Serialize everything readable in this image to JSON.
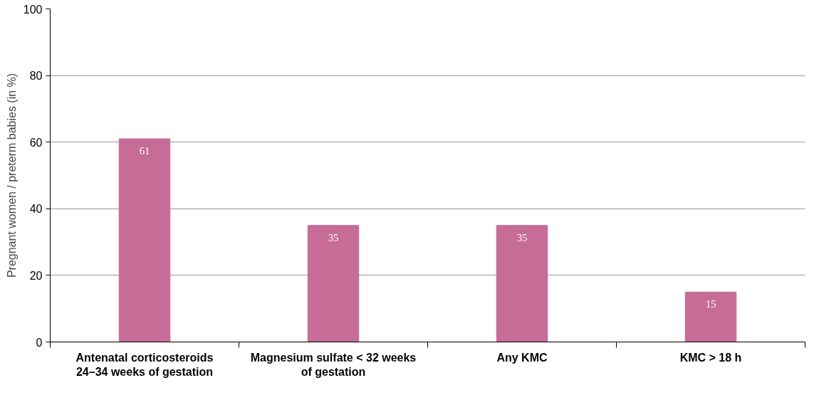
{
  "chart_data": {
    "type": "bar",
    "ylabel": "Pregnant women / preterm babies (in %)",
    "categories": [
      "Antenatal corticosteroids\n24–34 weeks of gestation",
      "Magnesium sulfate < 32 weeks\nof gestation",
      "Any KMC",
      "KMC > 18 h"
    ],
    "values": [
      61,
      35,
      35,
      15
    ],
    "color": "#c76b97",
    "ylim": [
      0,
      100
    ],
    "yticks": [
      0,
      20,
      40,
      60,
      80,
      100
    ],
    "grid": "y",
    "data_labels": true
  }
}
